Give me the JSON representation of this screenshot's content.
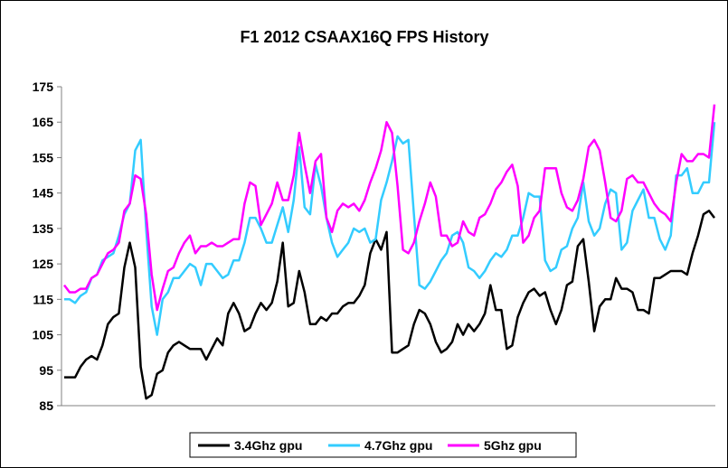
{
  "chart_data": {
    "type": "line",
    "title": "F1 2012 CSAAX16Q FPS History",
    "xlabel": "",
    "ylabel": "",
    "ylim": [
      85,
      175
    ],
    "yticks": [
      85,
      95,
      105,
      115,
      125,
      135,
      145,
      155,
      165,
      175
    ],
    "grid": false,
    "legend": "bottom",
    "series": [
      {
        "name": "3.4Ghz gpu",
        "color": "#000000",
        "values": [
          93,
          93,
          93,
          96,
          98,
          99,
          98,
          102,
          108,
          110,
          111,
          124,
          131,
          124,
          96,
          87,
          88,
          94,
          95,
          100,
          102,
          103,
          102,
          101,
          101,
          101,
          98,
          101,
          104,
          102,
          111,
          114,
          111,
          106,
          107,
          111,
          114,
          112,
          114,
          120,
          131,
          113,
          114,
          123,
          117,
          108,
          108,
          110,
          109,
          111,
          111,
          113,
          114,
          114,
          116,
          119,
          128,
          132,
          129,
          134,
          100,
          100,
          101,
          102,
          108,
          112,
          111,
          108,
          103,
          100,
          101,
          103,
          108,
          105,
          108,
          106,
          108,
          111,
          119,
          112,
          112,
          101,
          102,
          110,
          114,
          117,
          118,
          116,
          117,
          112,
          108,
          112,
          119,
          120,
          130,
          132,
          120,
          106,
          113,
          115,
          115,
          121,
          118,
          118,
          117,
          112,
          112,
          111,
          121,
          121,
          122,
          123,
          123,
          123,
          122,
          128,
          133,
          139,
          140,
          138
        ]
      },
      {
        "name": "4.7Ghz gpu",
        "color": "#33CCFF",
        "values": [
          115,
          115,
          114,
          116,
          117,
          121,
          122,
          126,
          127,
          128,
          133,
          139,
          142,
          157,
          160,
          135,
          113,
          105,
          115,
          117,
          121,
          121,
          123,
          125,
          124,
          119,
          125,
          125,
          123,
          121,
          122,
          126,
          126,
          131,
          138,
          138,
          135,
          131,
          131,
          136,
          141,
          134,
          143,
          158,
          141,
          139,
          153,
          147,
          138,
          131,
          127,
          129,
          131,
          135,
          134,
          135,
          131,
          132,
          143,
          148,
          154,
          161,
          159,
          160,
          139,
          119,
          118,
          120,
          123,
          126,
          128,
          133,
          134,
          131,
          124,
          123,
          121,
          123,
          126,
          128,
          127,
          129,
          133,
          133,
          138,
          145,
          144,
          144,
          126,
          123,
          124,
          129,
          130,
          135,
          138,
          148,
          137,
          133,
          135,
          142,
          146,
          145,
          129,
          131,
          140,
          143,
          146,
          138,
          138,
          132,
          129,
          133,
          150,
          150,
          152,
          145,
          145,
          148,
          148,
          165
        ]
      },
      {
        "name": "5Ghz gpu",
        "color": "#FF00FF",
        "values": [
          119,
          117,
          117,
          118,
          118,
          121,
          122,
          125,
          128,
          129,
          131,
          140,
          142,
          150,
          149,
          139,
          122,
          112,
          118,
          123,
          124,
          128,
          131,
          133,
          128,
          130,
          130,
          131,
          130,
          130,
          131,
          132,
          132,
          142,
          148,
          147,
          136,
          139,
          142,
          148,
          143,
          143,
          150,
          162,
          153,
          145,
          154,
          156,
          138,
          134,
          140,
          142,
          141,
          142,
          140,
          143,
          148,
          152,
          157,
          165,
          162,
          147,
          129,
          128,
          131,
          137,
          142,
          148,
          144,
          133,
          133,
          130,
          131,
          137,
          134,
          133,
          138,
          139,
          142,
          146,
          148,
          151,
          153,
          147,
          131,
          133,
          138,
          140,
          152,
          152,
          152,
          145,
          141,
          140,
          143,
          149,
          158,
          160,
          157,
          148,
          138,
          137,
          140,
          149,
          150,
          148,
          148,
          145,
          142,
          140,
          139,
          137,
          148,
          156,
          154,
          154,
          156,
          156,
          155,
          170
        ]
      }
    ]
  }
}
